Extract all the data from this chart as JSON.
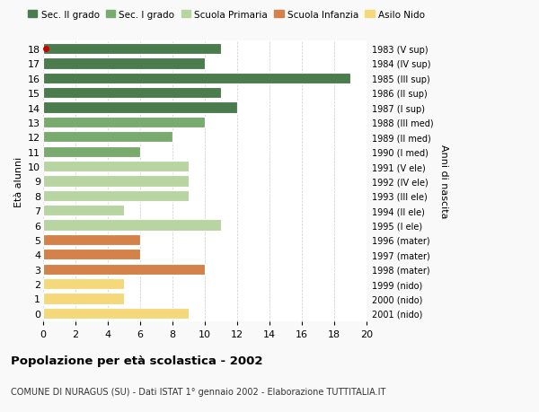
{
  "ages": [
    18,
    17,
    16,
    15,
    14,
    13,
    12,
    11,
    10,
    9,
    8,
    7,
    6,
    5,
    4,
    3,
    2,
    1,
    0
  ],
  "values": [
    11,
    10,
    19,
    11,
    12,
    10,
    8,
    6,
    9,
    9,
    9,
    5,
    11,
    6,
    6,
    10,
    5,
    5,
    9
  ],
  "right_labels": [
    "1983 (V sup)",
    "1984 (IV sup)",
    "1985 (III sup)",
    "1986 (II sup)",
    "1987 (I sup)",
    "1988 (III med)",
    "1989 (II med)",
    "1990 (I med)",
    "1991 (V ele)",
    "1992 (IV ele)",
    "1993 (III ele)",
    "1994 (II ele)",
    "1995 (I ele)",
    "1996 (mater)",
    "1997 (mater)",
    "1998 (mater)",
    "1999 (nido)",
    "2000 (nido)",
    "2001 (nido)"
  ],
  "colors": [
    "#4a7c4e",
    "#4a7c4e",
    "#4a7c4e",
    "#4a7c4e",
    "#4a7c4e",
    "#7aab6e",
    "#7aab6e",
    "#7aab6e",
    "#b8d4a0",
    "#b8d4a0",
    "#b8d4a0",
    "#b8d4a0",
    "#b8d4a0",
    "#d4824a",
    "#d4824a",
    "#d4824a",
    "#f5d87a",
    "#f5d87a",
    "#f5d87a"
  ],
  "legend_labels": [
    "Sec. II grado",
    "Sec. I grado",
    "Scuola Primaria",
    "Scuola Infanzia",
    "Asilo Nido"
  ],
  "legend_colors": [
    "#4a7c4e",
    "#7aab6e",
    "#b8d4a0",
    "#d4824a",
    "#f5d87a"
  ],
  "title": "Popolazione per età scolastica - 2002",
  "subtitle": "COMUNE DI NURAGUS (SU) - Dati ISTAT 1° gennaio 2002 - Elaborazione TUTTITALIA.IT",
  "ylabel": "Età alunni",
  "right_ylabel": "Anni di nascita",
  "xlim": [
    0,
    20
  ],
  "xticks": [
    0,
    2,
    4,
    6,
    8,
    10,
    12,
    14,
    16,
    18,
    20
  ],
  "dot_age": 18,
  "dot_color": "#cc0000",
  "background_color": "#f9f9f9",
  "bar_background": "#ffffff",
  "grid_color": "#cccccc"
}
